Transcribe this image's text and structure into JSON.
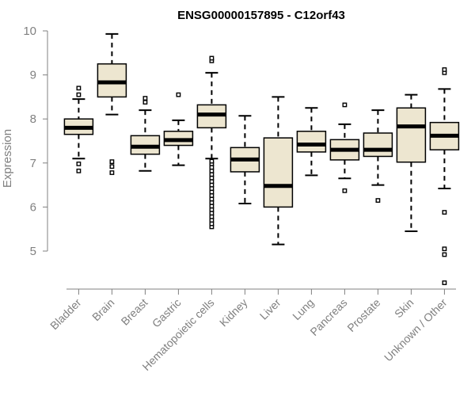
{
  "chart_data": {
    "type": "boxplot",
    "title": "ENSG00000157895 - C12orf43",
    "xlabel": "",
    "ylabel": "Expression",
    "ylim": [
      4.1,
      10.1
    ],
    "yticks": [
      5,
      6,
      7,
      8,
      9,
      10
    ],
    "colors": {
      "box_fill": "#ede6d0",
      "stroke": "#000000",
      "axis": "#808080"
    },
    "categories": [
      "Bladder",
      "Brain",
      "Breast",
      "Gastric",
      "Hematopoietic cells",
      "Kidney",
      "Liver",
      "Lung",
      "Pancreas",
      "Prostate",
      "Skin",
      "Unknown / Other"
    ],
    "boxes": [
      {
        "name": "Bladder",
        "whisker_low": 7.1,
        "q1": 7.65,
        "median": 7.8,
        "q3": 8.0,
        "whisker_high": 8.45,
        "outliers": [
          6.82,
          6.98,
          8.55,
          8.7
        ]
      },
      {
        "name": "Brain",
        "whisker_low": 8.1,
        "q1": 8.5,
        "median": 8.83,
        "q3": 9.25,
        "whisker_high": 9.93,
        "outliers": [
          6.78,
          6.92,
          7.03
        ]
      },
      {
        "name": "Breast",
        "whisker_low": 6.82,
        "q1": 7.2,
        "median": 7.37,
        "q3": 7.62,
        "whisker_high": 8.2,
        "outliers": [
          8.38,
          8.47
        ]
      },
      {
        "name": "Gastric",
        "whisker_low": 6.95,
        "q1": 7.4,
        "median": 7.52,
        "q3": 7.72,
        "whisker_high": 7.97,
        "outliers": [
          8.55
        ]
      },
      {
        "name": "Hematopoietic cells",
        "whisker_low": 7.1,
        "q1": 7.8,
        "median": 8.1,
        "q3": 8.32,
        "whisker_high": 9.05,
        "outliers": [
          9.32,
          9.38,
          5.55,
          5.62,
          5.7,
          5.78,
          5.86,
          5.94,
          6.02,
          6.1,
          6.18,
          6.26,
          6.34,
          6.42,
          6.5,
          6.58,
          6.66,
          6.74,
          6.82,
          6.9,
          6.98,
          7.04
        ]
      },
      {
        "name": "Kidney",
        "whisker_low": 6.08,
        "q1": 6.8,
        "median": 7.08,
        "q3": 7.35,
        "whisker_high": 8.07,
        "outliers": []
      },
      {
        "name": "Liver",
        "whisker_low": 5.15,
        "q1": 6.0,
        "median": 6.48,
        "q3": 7.57,
        "whisker_high": 8.5,
        "outliers": []
      },
      {
        "name": "Lung",
        "whisker_low": 6.72,
        "q1": 7.25,
        "median": 7.42,
        "q3": 7.72,
        "whisker_high": 8.25,
        "outliers": []
      },
      {
        "name": "Pancreas",
        "whisker_low": 6.65,
        "q1": 7.07,
        "median": 7.3,
        "q3": 7.53,
        "whisker_high": 7.88,
        "outliers": [
          6.37,
          8.32
        ]
      },
      {
        "name": "Prostate",
        "whisker_low": 6.5,
        "q1": 7.15,
        "median": 7.3,
        "q3": 7.68,
        "whisker_high": 8.2,
        "outliers": [
          6.15
        ]
      },
      {
        "name": "Skin",
        "whisker_low": 5.45,
        "q1": 7.02,
        "median": 7.83,
        "q3": 8.25,
        "whisker_high": 8.55,
        "outliers": []
      },
      {
        "name": "Unknown / Other",
        "whisker_low": 6.42,
        "q1": 7.3,
        "median": 7.62,
        "q3": 7.92,
        "whisker_high": 8.68,
        "outliers": [
          9.05,
          9.12,
          5.88,
          5.05,
          4.92,
          4.28
        ]
      }
    ]
  }
}
